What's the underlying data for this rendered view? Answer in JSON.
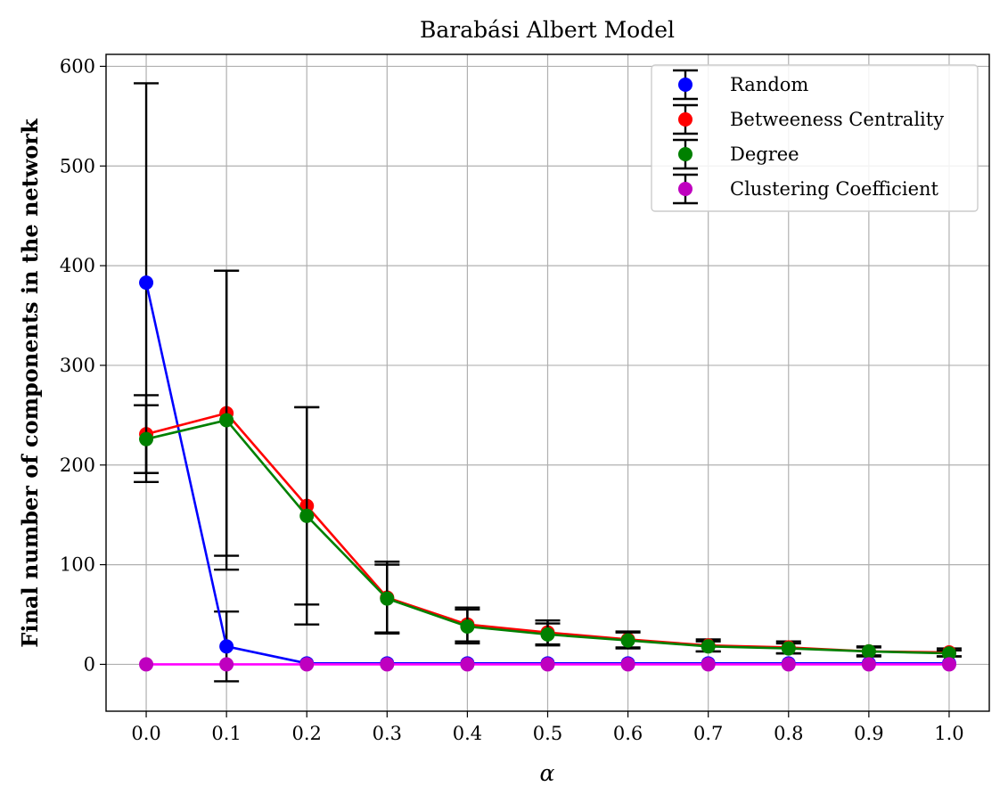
{
  "chart_data": {
    "type": "line",
    "title": "Barabási Albert Model",
    "xlabel": "α",
    "ylabel": "Final number of components in the network",
    "x": [
      0.0,
      0.1,
      0.2,
      0.3,
      0.4,
      0.5,
      0.6,
      0.7,
      0.8,
      0.9,
      1.0
    ],
    "x_tick_labels": [
      "0.0",
      "0.1",
      "0.2",
      "0.3",
      "0.4",
      "0.5",
      "0.6",
      "0.7",
      "0.8",
      "0.9",
      "1.0"
    ],
    "y_ticks": [
      0,
      100,
      200,
      300,
      400,
      500,
      600
    ],
    "y_tick_labels": [
      "0",
      "100",
      "200",
      "300",
      "400",
      "500",
      "600"
    ],
    "xlim": [
      -0.05,
      1.05
    ],
    "ylim": [
      -47,
      612
    ],
    "grid": true,
    "legend_position": "top-right",
    "series": [
      {
        "name": "Random",
        "color": "#0000ff",
        "values": [
          383,
          18,
          1,
          1,
          1,
          1,
          1,
          1,
          1,
          1,
          1
        ],
        "errors": [
          200,
          35,
          0,
          0,
          0,
          0,
          0,
          0,
          0,
          0,
          0
        ]
      },
      {
        "name": "Betweeness Centrality",
        "color": "#ff0000",
        "values": [
          231,
          252,
          159,
          67,
          40,
          32,
          25,
          19,
          17,
          13,
          12
        ],
        "errors": [
          39,
          143,
          99,
          36,
          17,
          12,
          8,
          6,
          6,
          5,
          4
        ]
      },
      {
        "name": "Degree",
        "color": "#008000",
        "values": [
          226,
          245,
          149,
          66,
          38,
          30,
          24,
          18,
          16,
          13,
          11
        ],
        "errors": [
          34,
          150,
          109,
          34,
          17,
          11,
          8,
          5,
          5,
          4,
          3
        ]
      },
      {
        "name": "Clustering Coefficient",
        "color": "#bf00bf",
        "line_color": "#ff00ff",
        "values": [
          0,
          0,
          0,
          0,
          0,
          0,
          0,
          0,
          0,
          0,
          0
        ],
        "errors": [
          0,
          0,
          0,
          0,
          0,
          0,
          0,
          0,
          0,
          0,
          0
        ]
      }
    ]
  }
}
